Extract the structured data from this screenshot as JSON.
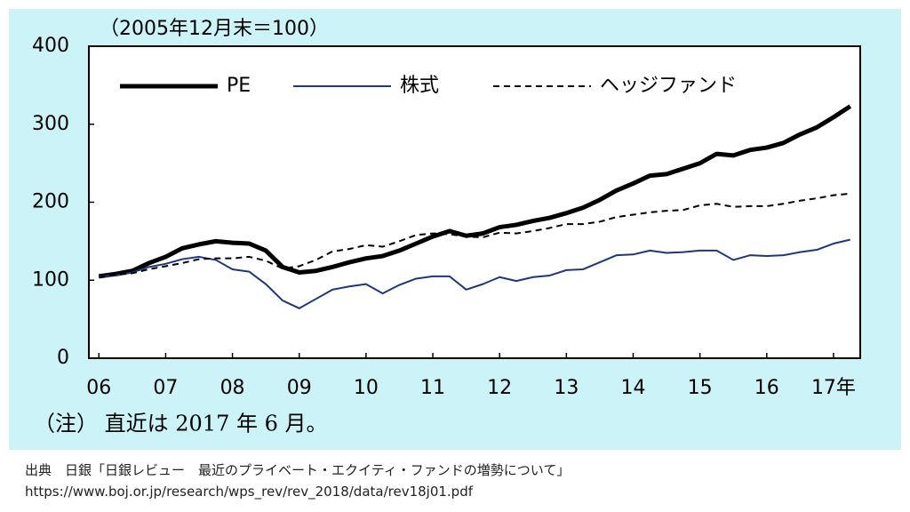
{
  "chart_data": {
    "type": "line",
    "title": "（2005年12月末＝100）",
    "note": "（注） 直近は 2017 年 6 月。",
    "x": [
      2006,
      2006.25,
      2006.5,
      2006.75,
      2007,
      2007.25,
      2007.5,
      2007.75,
      2008,
      2008.25,
      2008.5,
      2008.75,
      2009,
      2009.25,
      2009.5,
      2009.75,
      2010,
      2010.25,
      2010.5,
      2010.75,
      2011,
      2011.25,
      2011.5,
      2011.75,
      2012,
      2012.25,
      2012.5,
      2012.75,
      2013,
      2013.25,
      2013.5,
      2013.75,
      2014,
      2014.25,
      2014.5,
      2014.75,
      2015,
      2015.25,
      2015.5,
      2015.75,
      2016,
      2016.25,
      2016.5,
      2016.75,
      2017,
      2017.25
    ],
    "series": [
      {
        "name": "PE",
        "color": "#000000",
        "width": 5,
        "dashed": false,
        "values": [
          105,
          108,
          112,
          122,
          130,
          141,
          146,
          150,
          148,
          147,
          138,
          117,
          110,
          112,
          117,
          123,
          128,
          131,
          138,
          147,
          156,
          163,
          157,
          160,
          168,
          171,
          176,
          180,
          186,
          193,
          203,
          215,
          224,
          234,
          236,
          243,
          250,
          262,
          260,
          267,
          270,
          276,
          287,
          296,
          309,
          323
        ]
      },
      {
        "name": "株式",
        "color": "#1f3778",
        "width": 2,
        "dashed": false,
        "values": [
          105,
          106,
          110,
          117,
          121,
          127,
          130,
          126,
          114,
          111,
          95,
          74,
          64,
          76,
          88,
          92,
          95,
          83,
          94,
          102,
          105,
          105,
          88,
          95,
          104,
          99,
          104,
          106,
          113,
          114,
          123,
          132,
          133,
          138,
          135,
          136,
          138,
          138,
          126,
          132,
          131,
          132,
          136,
          139,
          147,
          152
        ]
      },
      {
        "name": "ヘッジファンド",
        "color": "#000000",
        "width": 2,
        "dashed": true,
        "values": [
          104,
          107,
          109,
          114,
          118,
          122,
          127,
          128,
          128,
          130,
          125,
          115,
          118,
          126,
          137,
          140,
          145,
          143,
          150,
          158,
          160,
          159,
          156,
          155,
          161,
          160,
          163,
          167,
          172,
          172,
          175,
          181,
          184,
          187,
          189,
          190,
          196,
          198,
          194,
          195,
          195,
          198,
          202,
          205,
          209,
          211
        ]
      }
    ],
    "xlim": [
      2005.85,
      2017.4
    ],
    "xticks": [
      {
        "value": 2006,
        "label": "06"
      },
      {
        "value": 2007,
        "label": "07"
      },
      {
        "value": 2008,
        "label": "08"
      },
      {
        "value": 2009,
        "label": "09"
      },
      {
        "value": 2010,
        "label": "10"
      },
      {
        "value": 2011,
        "label": "11"
      },
      {
        "value": 2012,
        "label": "12"
      },
      {
        "value": 2013,
        "label": "13"
      },
      {
        "value": 2014,
        "label": "14"
      },
      {
        "value": 2015,
        "label": "15"
      },
      {
        "value": 2016,
        "label": "16"
      },
      {
        "value": 2017,
        "label": "17年"
      }
    ],
    "ylim": [
      0,
      400
    ],
    "yticks": [
      0,
      100,
      200,
      300,
      400
    ]
  },
  "source": [
    "出典　日銀「日銀レビュー　最近のプライベート・エクイティ・ファンドの増勢について」",
    "https://www.boj.or.jp/research/wps_rev/rev_2018/data/rev18j01.pdf"
  ]
}
